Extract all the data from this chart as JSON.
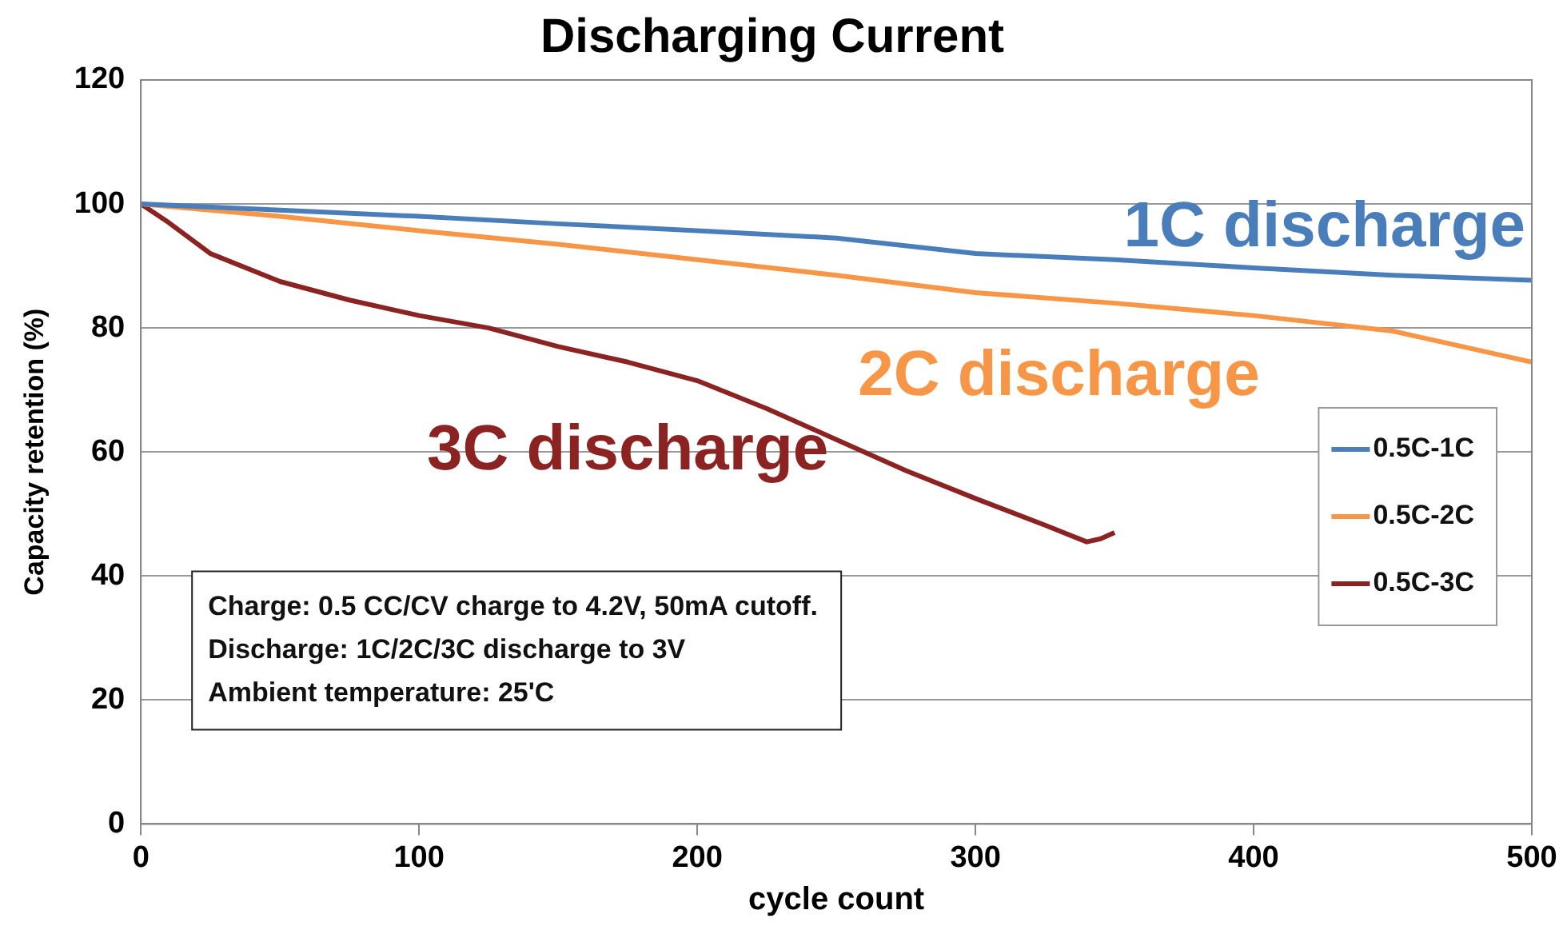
{
  "chart_data": {
    "type": "line",
    "title": "Discharging Current",
    "xlabel": "cycle count",
    "ylabel": "Capacity retention (%)",
    "xlim": [
      0,
      500
    ],
    "xticks": [
      0,
      100,
      200,
      300,
      400,
      500
    ],
    "ylim": [
      0,
      120
    ],
    "yticks": [
      0,
      20,
      40,
      60,
      80,
      100,
      120
    ],
    "grid": "y",
    "legend": "right",
    "marker": "none",
    "line_style": "solid",
    "series": [
      {
        "name": "0.5C-1C",
        "color": "#4a7ebb",
        "x": [
          0,
          50,
          100,
          150,
          200,
          250,
          300,
          350,
          400,
          450,
          500
        ],
        "values": [
          100,
          99,
          98,
          96.8,
          95.7,
          94.5,
          92,
          91,
          89.7,
          88.5,
          87.7
        ]
      },
      {
        "name": "0.5C-2C",
        "color": "#f79646",
        "x": [
          0,
          50,
          100,
          150,
          200,
          250,
          300,
          350,
          400,
          450,
          500
        ],
        "values": [
          100,
          98,
          95.7,
          93.5,
          91,
          88.5,
          85.7,
          84,
          82,
          79.5,
          74.5
        ]
      },
      {
        "name": "0.5C-3C",
        "color": "#8b2323",
        "x": [
          0,
          10,
          25,
          50,
          75,
          100,
          125,
          150,
          175,
          200,
          225,
          250,
          275,
          300,
          325,
          340,
          345,
          350
        ],
        "values": [
          100,
          97,
          92,
          87.5,
          84.5,
          82,
          80,
          77,
          74.5,
          71.5,
          67,
          62,
          57,
          52.5,
          48.2,
          45.5,
          46,
          47
        ]
      }
    ],
    "annotations": [
      "1C discharge",
      "2C discharge",
      "3C discharge",
      "Charge: 0.5 CC/CV charge to 4.2V, 50mA cutoff.",
      "Discharge: 1C/2C/3C discharge to 3V",
      "Ambient temperature: 25'C"
    ]
  }
}
